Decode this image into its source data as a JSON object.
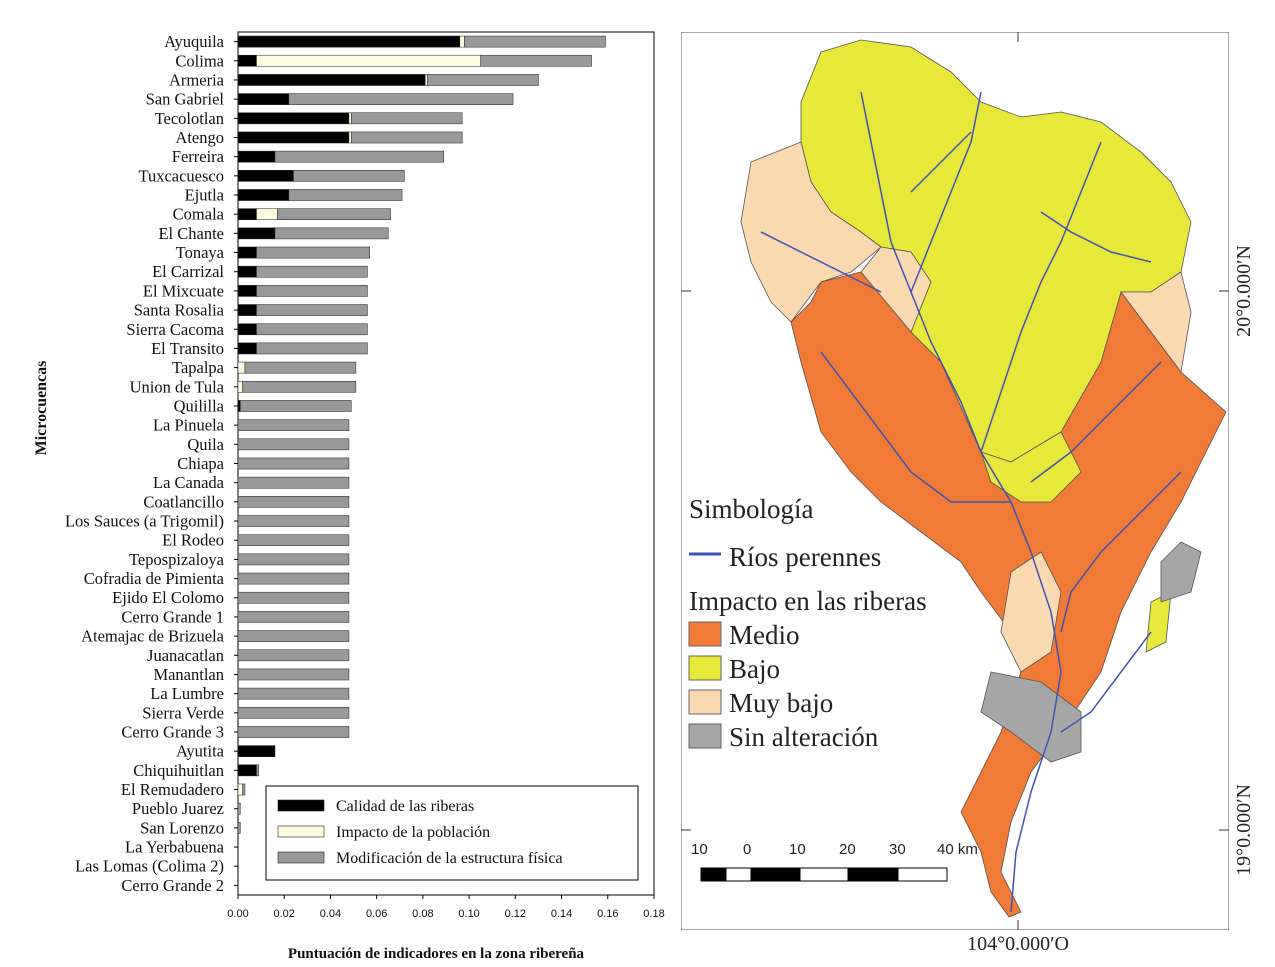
{
  "chart_data": {
    "type": "bar",
    "orientation": "horizontal",
    "stacked": true,
    "ylabel": "Microcuencas",
    "xlabel": "Puntuación de indicadores en la zona ribereña",
    "xlim": [
      0,
      0.18
    ],
    "xticks": [
      "0.00",
      "0.02",
      "0.04",
      "0.06",
      "0.08",
      "0.10",
      "0.12",
      "0.14",
      "0.16",
      "0.18"
    ],
    "categories": [
      "Ayuquila",
      "Colima",
      "Armeria",
      "San Gabriel",
      "Tecolotlan",
      "Atengo",
      "Ferreira",
      "Tuxcacuesco",
      "Ejutla",
      "Comala",
      "El Chante",
      "Tonaya",
      "El Carrizal",
      "El Mixcuate",
      "Santa Rosalia",
      "Sierra Cacoma",
      "El Transito",
      "Tapalpa",
      "Union de Tula",
      "Quililla",
      "La Pinuela",
      "Quila",
      "Chiapa",
      "La Canada",
      "Coatlancillo",
      "Los Sauces (a Trigomil)",
      "El Rodeo",
      "Tepospizaloya",
      "Cofradia de Pimienta",
      "Ejido El Colomo",
      "Cerro Grande 1",
      "Atemajac de Brizuela",
      "Juanacatlan",
      "Manantlan",
      "La Lumbre",
      "Sierra Verde",
      "Cerro Grande 3",
      "Ayutita",
      "Chiquihuitlan",
      "El Remudadero",
      "Pueblo Juarez",
      "San Lorenzo",
      "La Yerbabuena",
      "Las Lomas (Colima 2)",
      "Cerro Grande 2"
    ],
    "series": [
      {
        "name": "Calidad de las riberas",
        "color": "#000000",
        "values": [
          0.096,
          0.008,
          0.081,
          0.022,
          0.048,
          0.048,
          0.016,
          0.024,
          0.022,
          0.008,
          0.016,
          0.008,
          0.008,
          0.008,
          0.008,
          0.008,
          0.008,
          0.0,
          0.0,
          0.001,
          0.0,
          0.0,
          0.0,
          0.0,
          0.0,
          0.0,
          0.0,
          0.0,
          0.0,
          0.0,
          0.0,
          0.0,
          0.0,
          0.0,
          0.0,
          0.0,
          0.0,
          0.016,
          0.008,
          0.0,
          0.0,
          0.0,
          0.0,
          0.0,
          0.0
        ]
      },
      {
        "name": "Impacto de la población",
        "color": "#fffbe0",
        "values": [
          0.002,
          0.097,
          0.001,
          0.0,
          0.001,
          0.001,
          0.0,
          0.0,
          0.0,
          0.009,
          0.0,
          0.0,
          0.0,
          0.0,
          0.0,
          0.0,
          0.0,
          0.003,
          0.002,
          0.0,
          0.0,
          0.0,
          0.0,
          0.0,
          0.0,
          0.0,
          0.0,
          0.0,
          0.0,
          0.0,
          0.0,
          0.0,
          0.0,
          0.0,
          0.0,
          0.0,
          0.0,
          0.0,
          0.0,
          0.002,
          0.0,
          0.0,
          0.0,
          0.0,
          0.0
        ]
      },
      {
        "name": "Modificación de la estructura física",
        "color": "#999999",
        "values": [
          0.061,
          0.048,
          0.048,
          0.097,
          0.048,
          0.048,
          0.073,
          0.048,
          0.049,
          0.049,
          0.049,
          0.049,
          0.048,
          0.048,
          0.048,
          0.048,
          0.048,
          0.048,
          0.049,
          0.048,
          0.048,
          0.048,
          0.048,
          0.048,
          0.048,
          0.048,
          0.048,
          0.048,
          0.048,
          0.048,
          0.048,
          0.048,
          0.048,
          0.048,
          0.048,
          0.048,
          0.048,
          0.0,
          0.001,
          0.001,
          0.001,
          0.001,
          0.0,
          0.0,
          0.0
        ]
      }
    ],
    "legend": [
      "Calidad de las riberas",
      "Impacto de la población",
      "Modificación de la estructura física"
    ],
    "legend_position": "bottom-right"
  },
  "map": {
    "legend_title": "Simbología",
    "rivers_label": "Ríos perennes",
    "impact_title": "Impacto en las riberas",
    "classes": [
      {
        "label": "Medio",
        "color": "#f07a36"
      },
      {
        "label": "Bajo",
        "color": "#e8e83a"
      },
      {
        "label": "Muy bajo",
        "color": "#fbd9b0"
      },
      {
        "label": "Sin alteración",
        "color": "#a6a6a6"
      }
    ],
    "river_color": "#3f51b5",
    "scale": {
      "ticks": [
        "10",
        "0",
        "10",
        "20",
        "30",
        "40 km"
      ]
    },
    "lat_top": "20°0.000′N",
    "lat_bottom": "19°0.000′N",
    "lon": "104°0.000′O"
  }
}
